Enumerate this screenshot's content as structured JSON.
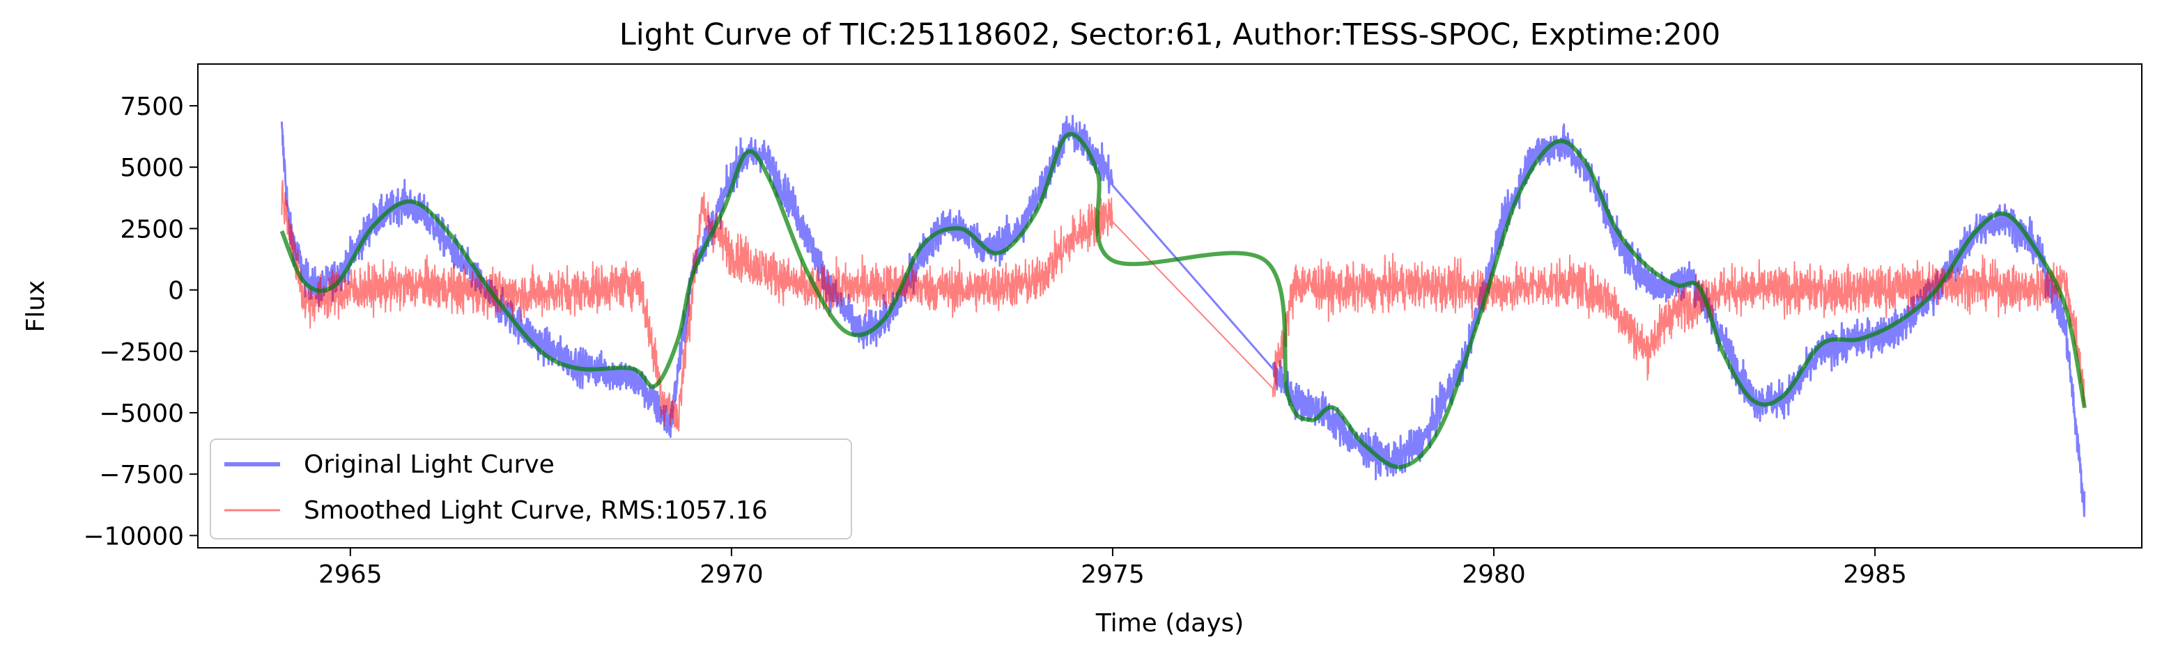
{
  "chart_data": {
    "type": "line",
    "title": "Light Curve of TIC:25118602, Sector:61, Author:TESS-SPOC, Exptime:200",
    "xlabel": "Time (days)",
    "ylabel": "Flux",
    "xlim": [
      2963.0,
      2988.5
    ],
    "ylim": [
      -10500,
      9200
    ],
    "xticks": [
      2965,
      2970,
      2975,
      2980,
      2985
    ],
    "yticks": [
      -10000,
      -7500,
      -5000,
      -2500,
      0,
      2500,
      5000,
      7500
    ],
    "grid": false,
    "legend": {
      "position": "bottom-left"
    },
    "series": [
      {
        "name": "Original Light Curve",
        "color": "#0000ff",
        "role": "noisy",
        "noise": 700,
        "x": [
          2964.1,
          2964.2,
          2964.4,
          2964.6,
          2964.9,
          2965.3,
          2965.7,
          2966.0,
          2966.5,
          2967.0,
          2967.5,
          2968.0,
          2968.5,
          2968.8,
          2969.0,
          2969.2,
          2969.5,
          2969.8,
          2970.1,
          2970.4,
          2970.8,
          2971.3,
          2971.7,
          2972.1,
          2972.5,
          2972.8,
          2973.1,
          2973.4,
          2973.8,
          2974.2,
          2974.4,
          2974.7,
          2975.0,
          2977.1,
          2977.4,
          2977.8,
          2978.2,
          2978.7,
          2979.1,
          2979.6,
          2980.1,
          2980.5,
          2980.9,
          2981.3,
          2981.7,
          2982.0,
          2982.2,
          2982.6,
          2983.0,
          2983.4,
          2983.8,
          2984.3,
          2984.8,
          2985.3,
          2985.8,
          2986.3,
          2986.7,
          2987.1,
          2987.5,
          2987.75
        ],
        "y": [
          6500,
          2500,
          500,
          0,
          800,
          2800,
          3600,
          3000,
          1000,
          -800,
          -2200,
          -3100,
          -3400,
          -3800,
          -4700,
          -5500,
          1000,
          3000,
          5300,
          5600,
          3500,
          0,
          -1800,
          -1000,
          1500,
          2700,
          2300,
          1600,
          2500,
          5000,
          6500,
          5800,
          4400,
          -3200,
          -4500,
          -5000,
          -6300,
          -7000,
          -6000,
          -3000,
          2500,
          5500,
          6000,
          4500,
          1500,
          500,
          100,
          500,
          -2000,
          -4500,
          -4500,
          -2500,
          -2000,
          -1600,
          0,
          2300,
          3000,
          1800,
          -1500,
          -9000
        ]
      },
      {
        "name": "Smoothed Light Curve, RMS:1057.16",
        "color": "#ff0000",
        "role": "noisy",
        "noise": 900,
        "x": [
          2964.1,
          2964.4,
          2965.0,
          2966.0,
          2967.0,
          2968.0,
          2968.8,
          2969.1,
          2969.3,
          2969.6,
          2970.0,
          2971.0,
          2972.0,
          2973.0,
          2974.0,
          2974.5,
          2975.0,
          2977.1,
          2977.4,
          2978.0,
          2979.0,
          2980.0,
          2981.0,
          2981.5,
          2982.0,
          2982.3,
          2982.6,
          2983.0,
          2984.0,
          2985.0,
          2986.0,
          2987.0,
          2987.5,
          2987.75
        ],
        "y": [
          4000,
          -500,
          0,
          200,
          -200,
          0,
          300,
          -4500,
          -5200,
          3200,
          1500,
          0,
          200,
          0,
          300,
          2200,
          3200,
          -4000,
          300,
          0,
          200,
          0,
          300,
          -300,
          -2500,
          -1000,
          -500,
          0,
          0,
          0,
          300,
          0,
          400,
          -4000
        ]
      },
      {
        "name": "",
        "color": "#008000",
        "role": "smooth",
        "x": [
          2964.1,
          2964.4,
          2964.8,
          2965.3,
          2965.8,
          2966.3,
          2966.9,
          2967.5,
          2968.0,
          2968.7,
          2969.0,
          2969.3,
          2969.5,
          2969.9,
          2970.2,
          2970.5,
          2971.0,
          2971.5,
          2972.0,
          2972.5,
          2973.0,
          2973.5,
          2974.0,
          2974.4,
          2974.8,
          2975.0,
          2977.0,
          2977.3,
          2977.6,
          2977.9,
          2978.3,
          2978.8,
          2979.3,
          2979.8,
          2980.3,
          2980.8,
          2981.2,
          2981.6,
          2982.0,
          2982.4,
          2982.7,
          2983.0,
          2983.4,
          2983.8,
          2984.3,
          2984.8,
          2985.3,
          2985.8,
          2986.3,
          2986.7,
          2987.1,
          2987.5,
          2987.75
        ],
        "y": [
          2400,
          300,
          200,
          2600,
          3600,
          2300,
          -300,
          -2500,
          -3200,
          -3200,
          -3900,
          -2000,
          700,
          3300,
          5600,
          4500,
          700,
          -1700,
          -1200,
          1800,
          2500,
          1500,
          3200,
          6300,
          4800,
          1200,
          1200,
          -4300,
          -5300,
          -4800,
          -6300,
          -7200,
          -5600,
          -1200,
          3700,
          6000,
          5200,
          2500,
          1000,
          200,
          100,
          -2500,
          -4500,
          -4300,
          -2200,
          -2000,
          -1300,
          0,
          2300,
          3100,
          1700,
          -700,
          -4800
        ]
      }
    ]
  }
}
